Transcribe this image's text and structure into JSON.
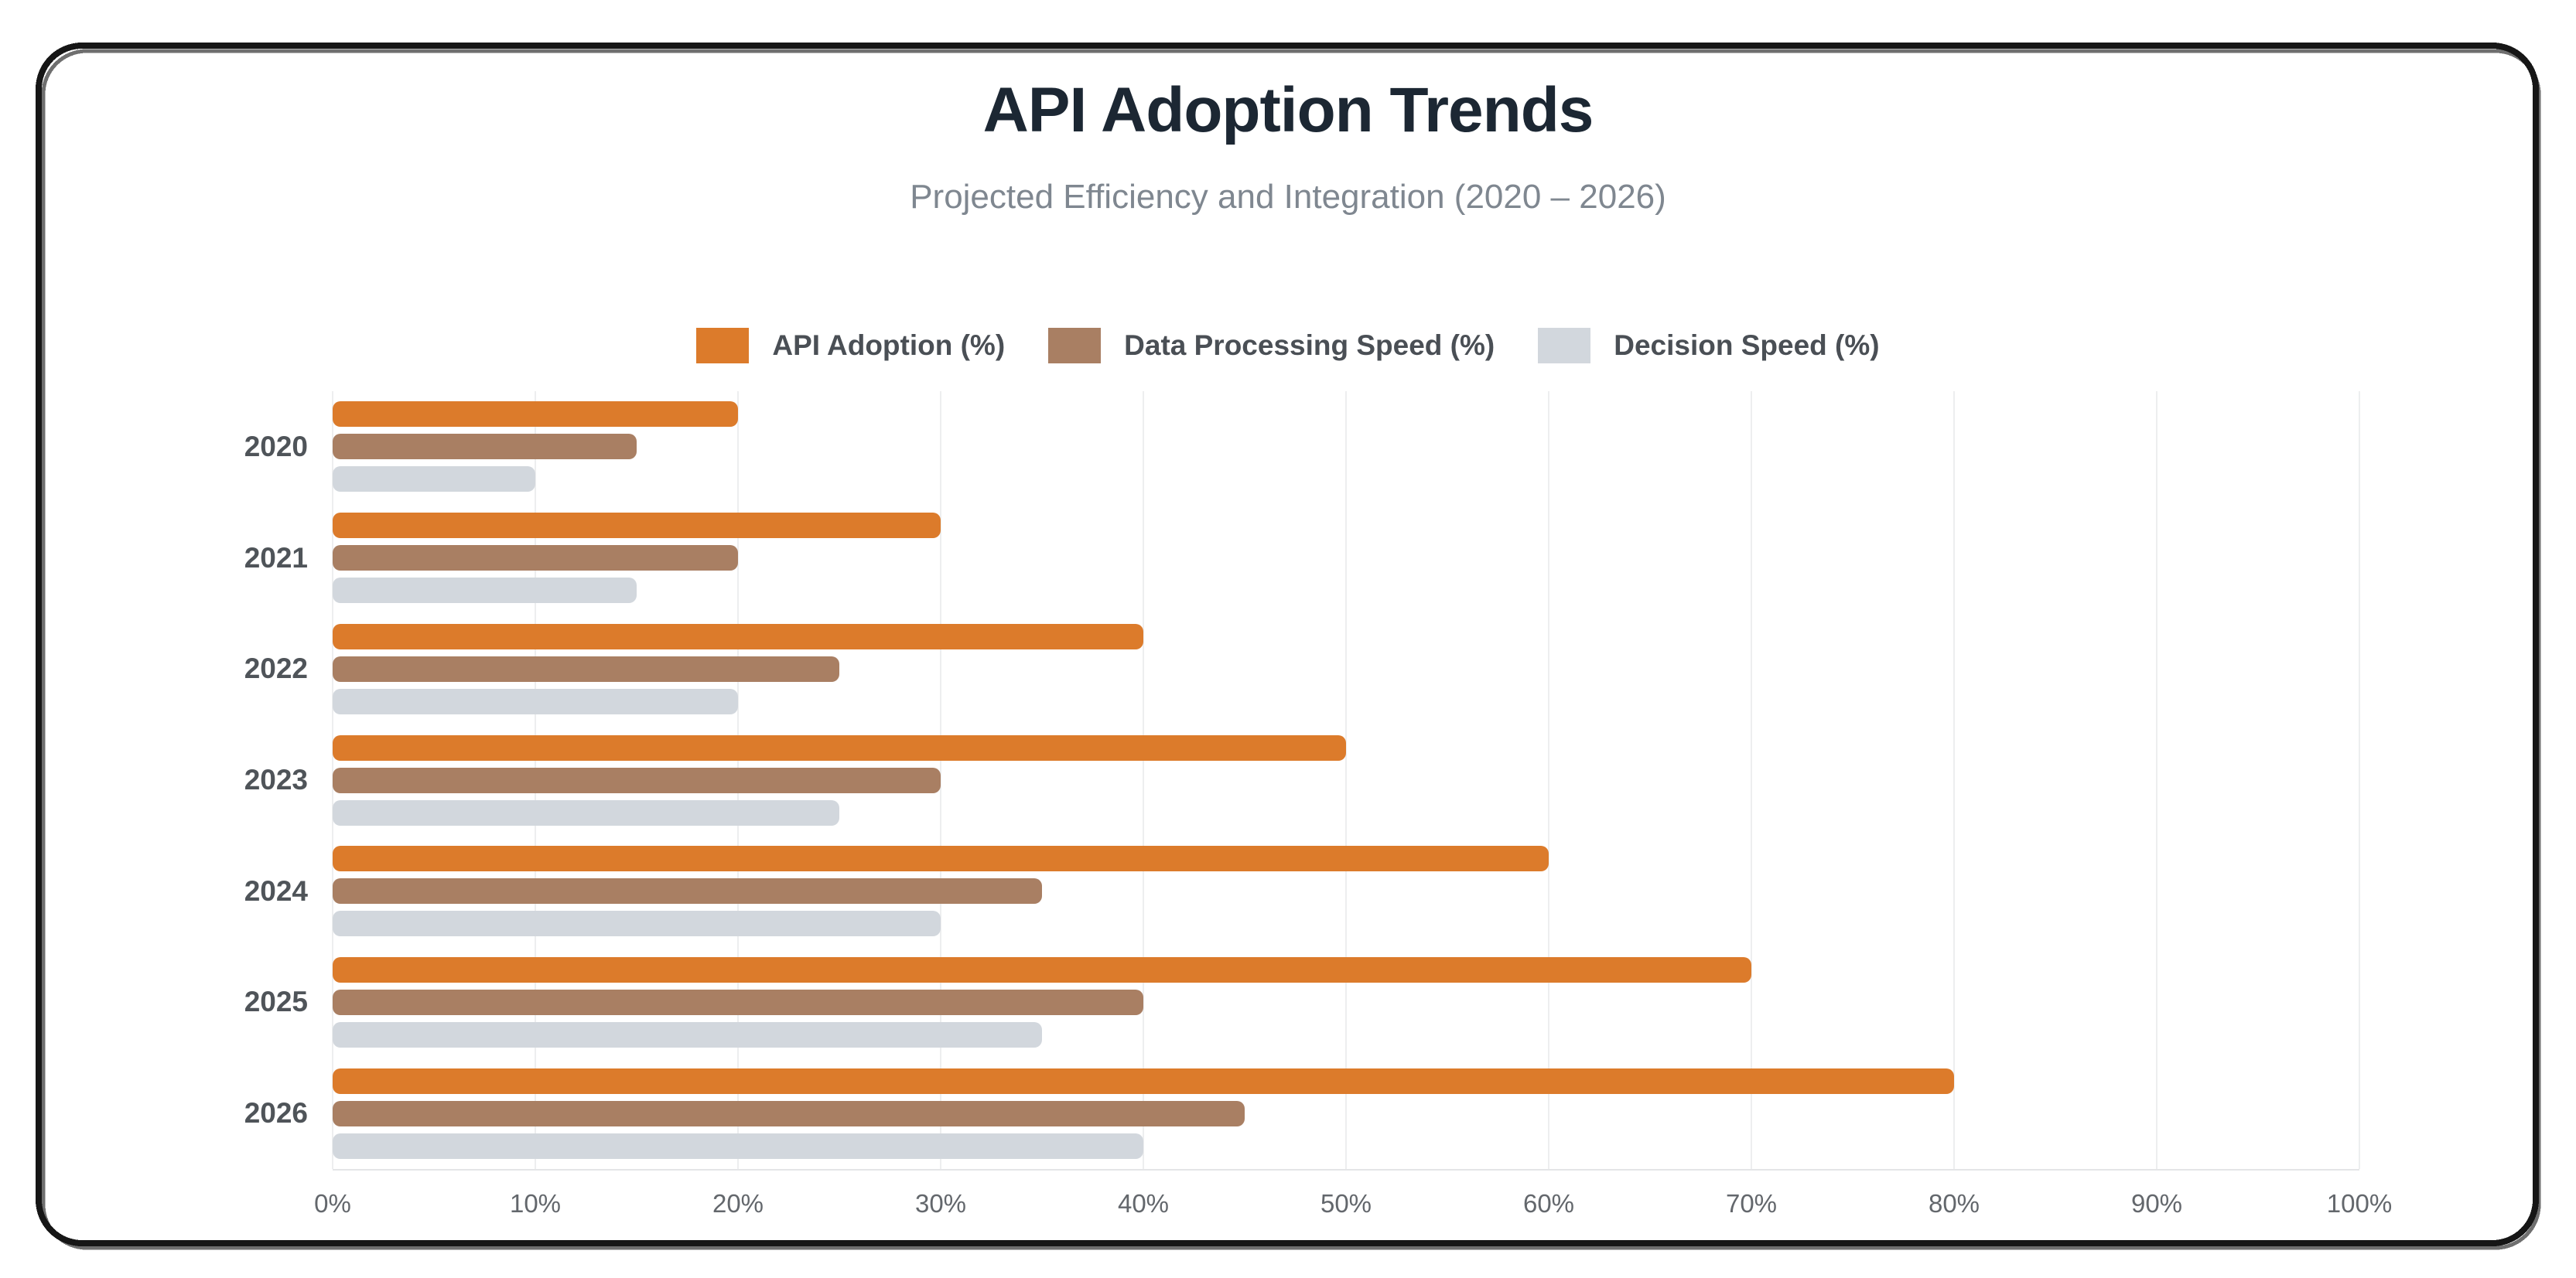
{
  "header": {
    "title": "API Adoption Trends",
    "subtitle": "Projected Efficiency and Integration (2020 – 2026)"
  },
  "colors": {
    "accent_orange": "#DC7B2B",
    "accent_brown": "#A97F63",
    "accent_gray": "#D2D7DD",
    "title_text": "#1C2733",
    "subtitle_text": "#7F8790",
    "year_label_text": "#4F5459",
    "tick_label_text": "#63676C",
    "legend_label_text": "#4A4F55",
    "grid_line": "#EDEEEF",
    "border_black": "#161616",
    "border_gray": "#6F6F6F"
  },
  "chart_data": {
    "type": "bar",
    "orientation": "horizontal",
    "title": "API Adoption Trends",
    "subtitle": "Projected Efficiency and Integration (2020 – 2026)",
    "xlabel": "",
    "ylabel": "",
    "categories": [
      "2020",
      "2021",
      "2022",
      "2023",
      "2024",
      "2025",
      "2026"
    ],
    "series": [
      {
        "name": "API Adoption (%)",
        "color": "#DC7B2B",
        "values": [
          20,
          30,
          40,
          50,
          60,
          70,
          80
        ]
      },
      {
        "name": "Data Processing Speed (%)",
        "color": "#A97F63",
        "values": [
          15,
          20,
          25,
          30,
          35,
          40,
          45
        ]
      },
      {
        "name": "Decision Speed (%)",
        "color": "#D2D7DD",
        "values": [
          10,
          15,
          20,
          25,
          30,
          35,
          40
        ]
      }
    ],
    "xlim": [
      0,
      100
    ],
    "x_ticks": [
      "0%",
      "10%",
      "20%",
      "30%",
      "40%",
      "50%",
      "60%",
      "70%",
      "80%",
      "90%",
      "100%"
    ],
    "grid": true,
    "legend_position": "top"
  }
}
